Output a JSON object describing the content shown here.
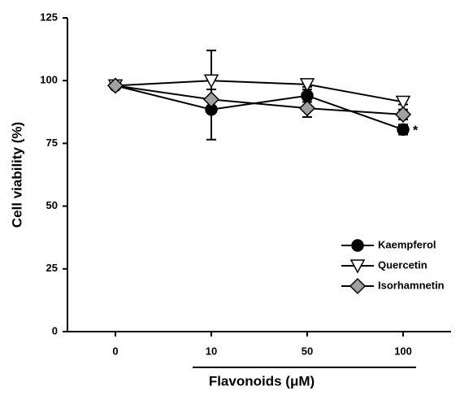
{
  "chart_data": {
    "type": "line",
    "x_label": "Flavonoids (μM)",
    "y_label": "Cell viability (%)",
    "categories": [
      "0",
      "10",
      "50",
      "100"
    ],
    "series": [
      {
        "name": "Kaempferol",
        "color": "#000000",
        "marker": "circle",
        "values": [
          98,
          88.5,
          94,
          80.5
        ],
        "errors": [
          1,
          12,
          2.5,
          2
        ]
      },
      {
        "name": "Quercetin",
        "color": "#ffffff",
        "marker": "triangle-down",
        "values": [
          98,
          100,
          98.5,
          91.5
        ],
        "errors": [
          1,
          12,
          1,
          1
        ]
      },
      {
        "name": "Isorhamnetin",
        "color": "#a0a0a0",
        "marker": "diamond",
        "values": [
          98,
          92.5,
          89,
          86.5
        ],
        "errors": [
          1,
          4,
          3.5,
          2
        ]
      }
    ],
    "annotations": [
      "*"
    ],
    "ylim": [
      0,
      125
    ],
    "yticks": [
      0,
      25,
      50,
      75,
      100,
      125
    ],
    "legend": "lower right"
  }
}
